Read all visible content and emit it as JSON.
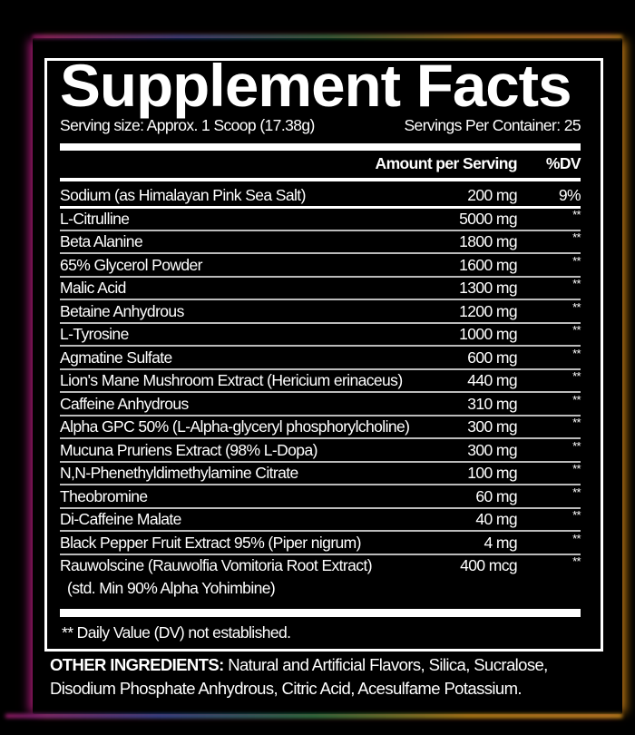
{
  "title": "Supplement Facts",
  "serving_size": "Serving size: Approx. 1 Scoop (17.38g)",
  "servings_per_container": "Servings Per Container: 25",
  "header": {
    "amount": "Amount per Serving",
    "dv": "%DV"
  },
  "rows": [
    {
      "name": "Sodium (as Himalayan Pink Sea Salt)",
      "amount": "200 mg",
      "dv": "9%"
    },
    {
      "name": "L-Citrulline",
      "amount": "5000 mg",
      "dv": "**"
    },
    {
      "name": "Beta Alanine",
      "amount": "1800 mg",
      "dv": "**"
    },
    {
      "name": "65% Glycerol Powder",
      "amount": "1600 mg",
      "dv": "**"
    },
    {
      "name": "Malic Acid",
      "amount": "1300 mg",
      "dv": "**"
    },
    {
      "name": "Betaine Anhydrous",
      "amount": "1200 mg",
      "dv": "**"
    },
    {
      "name": "L-Tyrosine",
      "amount": "1000 mg",
      "dv": "**"
    },
    {
      "name": "Agmatine Sulfate",
      "amount": "600 mg",
      "dv": "**"
    },
    {
      "name": "Lion's Mane Mushroom Extract (Hericium erinaceus)",
      "amount": "440 mg",
      "dv": "**"
    },
    {
      "name": "Caffeine Anhydrous",
      "amount": "310 mg",
      "dv": "**"
    },
    {
      "name": "Alpha GPC 50% (L-Alpha-glyceryl phosphorylcholine)",
      "amount": "300 mg",
      "dv": "**"
    },
    {
      "name": "Mucuna Pruriens Extract (98% L-Dopa)",
      "amount": "300 mg",
      "dv": "**"
    },
    {
      "name": "N,N-Phenethyldimethylamine Citrate",
      "amount": "100 mg",
      "dv": "**"
    },
    {
      "name": "Theobromine",
      "amount": "60 mg",
      "dv": "**"
    },
    {
      "name": "Di-Caffeine Malate",
      "amount": "40 mg",
      "dv": "**"
    },
    {
      "name": "Black Pepper Fruit Extract 95% (Piper nigrum)",
      "amount": "4 mg",
      "dv": "**"
    },
    {
      "name": "Rauwolscine (Rauwolfia Vomitoria Root Extract)",
      "amount": "400 mcg",
      "dv": "**",
      "sub": "(std. Min 90% Alpha Yohimbine)"
    }
  ],
  "footnote": "** Daily Value (DV) not established.",
  "other_ingredients": {
    "label": "OTHER INGREDIENTS:",
    "text": " Natural and Artificial Flavors, Silica, Sucralose, Disodium Phosphate Anhydrous, Citric Acid, Acesulfame Potassium."
  }
}
